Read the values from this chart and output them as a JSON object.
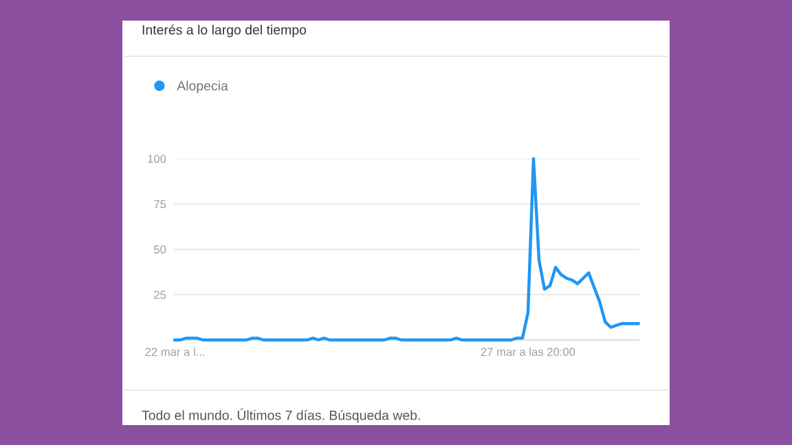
{
  "chart_data": {
    "type": "line",
    "title": "Interés a lo largo del tiempo",
    "categories": [
      "22 mar a l...",
      null,
      null,
      null,
      null,
      null,
      null,
      null,
      null,
      null,
      null,
      null,
      null,
      null,
      null,
      null,
      null,
      null,
      null,
      null,
      null,
      null,
      null,
      null,
      null,
      null,
      null,
      null,
      null,
      null,
      null,
      null,
      null,
      null,
      null,
      null,
      null,
      null,
      null,
      null,
      null,
      null,
      null,
      null,
      null,
      null,
      null,
      null,
      null,
      null,
      null,
      null,
      null,
      null,
      null,
      null,
      null,
      null,
      null,
      null,
      null,
      null,
      null,
      null,
      "27 mar a las 20:00",
      null,
      null,
      null,
      null,
      null,
      null,
      null,
      null,
      null,
      null,
      null,
      null,
      null,
      null,
      null,
      null,
      null,
      null,
      null,
      null
    ],
    "series": [
      {
        "name": "Alopecia",
        "color": "#2196f3",
        "values": [
          0,
          0,
          1,
          1,
          1,
          0,
          0,
          0,
          0,
          0,
          0,
          0,
          0,
          0,
          1,
          1,
          0,
          0,
          0,
          0,
          0,
          0,
          0,
          0,
          0,
          1,
          0,
          1,
          0,
          0,
          0,
          0,
          0,
          0,
          0,
          0,
          0,
          0,
          0,
          1,
          1,
          0,
          0,
          0,
          0,
          0,
          0,
          0,
          0,
          0,
          0,
          1,
          0,
          0,
          0,
          0,
          0,
          0,
          0,
          0,
          0,
          0,
          1,
          1,
          15,
          100,
          44,
          28,
          30,
          40,
          36,
          34,
          33,
          31,
          34,
          37,
          29,
          21,
          10,
          7,
          8,
          9,
          9,
          9,
          9
        ]
      }
    ],
    "ylim": [
      0,
      100
    ],
    "yticks": [
      25,
      50,
      75,
      100
    ],
    "grid": "y",
    "legend": "top left",
    "marker": "none",
    "line_style": "solid",
    "annotations": [
      "Todo el mundo. Últimos 7 días. Búsqueda web."
    ]
  }
}
